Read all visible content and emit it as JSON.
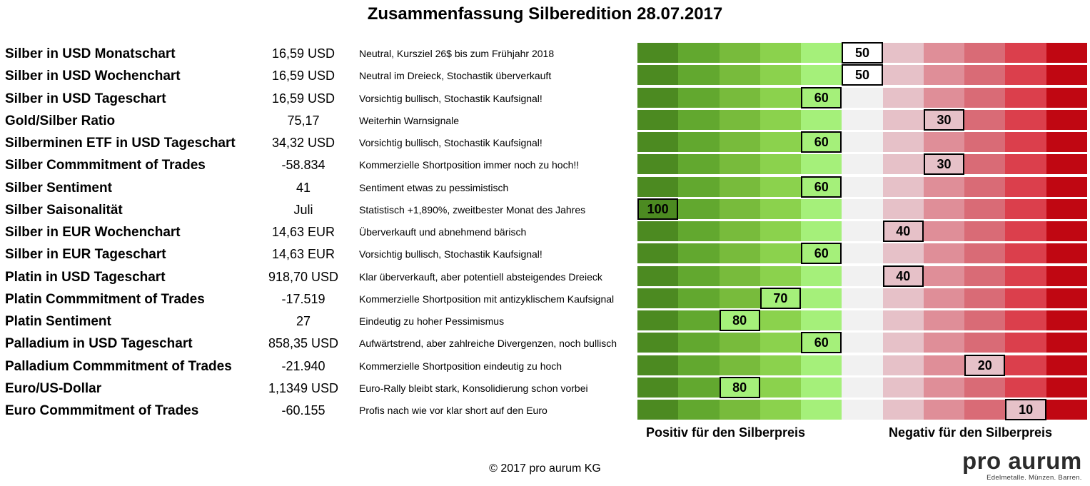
{
  "title": "Zusammenfassung Silberedition 28.07.2017",
  "colors": {
    "segments": [
      "#4c8a21",
      "#62a82f",
      "#78bb3c",
      "#8bd24d",
      "#a5f07a",
      "#f1f1f1",
      "#e6c1c8",
      "#df8e98",
      "#d96b76",
      "#db3f4c",
      "#c00712"
    ],
    "score_fill_green": "#a5f07a",
    "score_fill_red": "#e6c1c8"
  },
  "chart_data": {
    "type": "table",
    "title": "Zusammenfassung Silberedition 28.07.2017",
    "scale_range": [
      0,
      100
    ],
    "scale_direction": "100 = links (positiv), 0 = rechts (negativ)",
    "rows": [
      {
        "label": "Silber in USD Monatschart",
        "value": "16,59 USD",
        "comment": "Neutral, Kursziel 26$ bis zum Frühjahr 2018",
        "score": 50
      },
      {
        "label": "Silber in USD Wochenchart",
        "value": "16,59 USD",
        "comment": "Neutral im Dreieck, Stochastik überverkauft",
        "score": 50
      },
      {
        "label": "Silber in USD Tageschart",
        "value": "16,59 USD",
        "comment": "Vorsichtig bullisch, Stochastik Kaufsignal!",
        "score": 60
      },
      {
        "label": "Gold/Silber Ratio",
        "value": "75,17",
        "comment": "Weiterhin Warnsignale",
        "score": 30
      },
      {
        "label": "Silberminen ETF in USD Tageschart",
        "value": "34,32 USD",
        "comment": "Vorsichtig bullisch, Stochastik Kaufsignal!",
        "score": 60
      },
      {
        "label": "Silber Commmitment of Trades",
        "value": "-58.834",
        "comment": "Kommerzielle Shortposition immer noch zu hoch!!",
        "score": 30
      },
      {
        "label": "Silber Sentiment",
        "value": "41",
        "comment": "Sentiment etwas zu pessimistisch",
        "score": 60
      },
      {
        "label": "Silber Saisonalität",
        "value": "Juli",
        "comment": "Statistisch +1,890%, zweitbester Monat des Jahres",
        "score": 100
      },
      {
        "label": "Silber in EUR Wochenchart",
        "value": "14,63 EUR",
        "comment": "Überverkauft und abnehmend bärisch",
        "score": 40
      },
      {
        "label": "Silber in EUR Tageschart",
        "value": "14,63 EUR",
        "comment": "Vorsichtig bullisch, Stochastik Kaufsignal!",
        "score": 60
      },
      {
        "label": "Platin in USD Tageschart",
        "value": "918,70 USD",
        "comment": "Klar überverkauft, aber potentiell absteigendes Dreieck",
        "score": 40
      },
      {
        "label": "Platin Commmitment of Trades",
        "value": "-17.519",
        "comment": "Kommerzielle Shortposition mit antizyklischem Kaufsignal",
        "score": 70
      },
      {
        "label": "Platin Sentiment",
        "value": "27",
        "comment": "Eindeutig zu hoher Pessimismus",
        "score": 80
      },
      {
        "label": "Palladium in USD Tageschart",
        "value": "858,35 USD",
        "comment": "Aufwärtstrend, aber zahlreiche Divergenzen, noch bullisch",
        "score": 60
      },
      {
        "label": "Palladium Commmitment of Trades",
        "value": "-21.940",
        "comment": "Kommerzielle Shortposition eindeutig zu hoch",
        "score": 20
      },
      {
        "label": "Euro/US-Dollar",
        "value": "1,1349 USD",
        "comment": "Euro-Rally bleibt stark, Konsolidierung schon vorbei",
        "score": 80
      },
      {
        "label": "Euro Commmitment of Trades",
        "value": "-60.155",
        "comment": "Profis nach wie vor klar short auf den Euro",
        "score": 10
      }
    ],
    "positive_label": "Positiv für den Silberpreis",
    "negative_label": "Negativ für den Silberpreis"
  },
  "footer": {
    "copyright": "© 2017 pro aurum KG",
    "logo_main": "pro aurum",
    "logo_sub": "Edelmetalle. Münzen. Barren."
  }
}
